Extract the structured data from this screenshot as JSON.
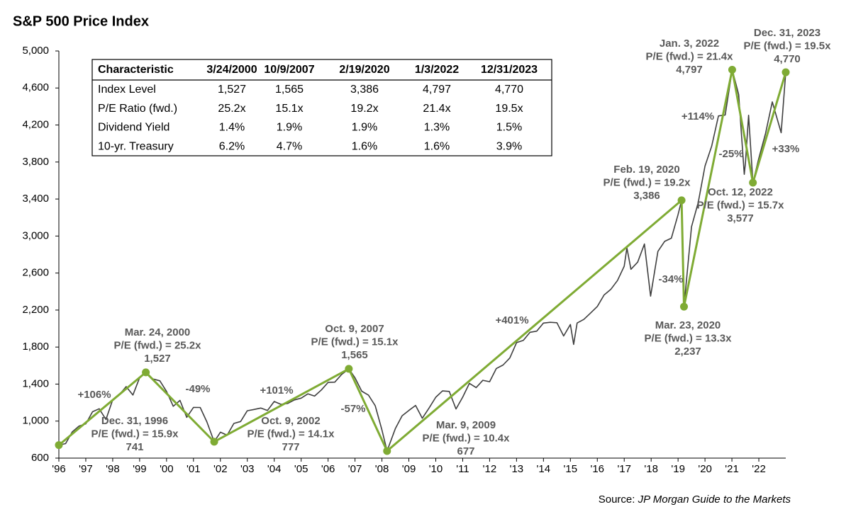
{
  "chart_data": {
    "type": "line",
    "title": "S&P 500 Price Index",
    "xlim": [
      1997,
      2024
    ],
    "xticks": [
      {
        "value": 1997,
        "label": "'96"
      },
      {
        "value": 1998,
        "label": "'97"
      },
      {
        "value": 1999,
        "label": "'98"
      },
      {
        "value": 2000,
        "label": "'99"
      },
      {
        "value": 2001,
        "label": "'00"
      },
      {
        "value": 2002,
        "label": "'01"
      },
      {
        "value": 2003,
        "label": "'02"
      },
      {
        "value": 2004,
        "label": "'03"
      },
      {
        "value": 2005,
        "label": "'04"
      },
      {
        "value": 2006,
        "label": "'05"
      },
      {
        "value": 2007,
        "label": "'06"
      },
      {
        "value": 2008,
        "label": "'07"
      },
      {
        "value": 2009,
        "label": "'08"
      },
      {
        "value": 2010,
        "label": "'09"
      },
      {
        "value": 2011,
        "label": "'10"
      },
      {
        "value": 2012,
        "label": "'11"
      },
      {
        "value": 2013,
        "label": "'12"
      },
      {
        "value": 2014,
        "label": "'13"
      },
      {
        "value": 2015,
        "label": "'14"
      },
      {
        "value": 2016,
        "label": "'15"
      },
      {
        "value": 2017,
        "label": "'16"
      },
      {
        "value": 2018,
        "label": "'17"
      },
      {
        "value": 2019,
        "label": "'18"
      },
      {
        "value": 2020,
        "label": "'19"
      },
      {
        "value": 2021,
        "label": "'20"
      },
      {
        "value": 2022,
        "label": "'21"
      },
      {
        "value": 2023,
        "label": "'22"
      }
    ],
    "ylim": [
      600,
      5000
    ],
    "yticks": [
      600,
      {
        "value": 1000,
        "label": "1,000"
      },
      {
        "value": 1400,
        "label": "1,400"
      },
      {
        "value": 1800,
        "label": "1,800"
      },
      {
        "value": 2200,
        "label": "2,200"
      },
      {
        "value": 2600,
        "label": "2,600"
      },
      {
        "value": 3000,
        "label": "3,000"
      },
      {
        "value": 3400,
        "label": "3,400"
      },
      {
        "value": 3800,
        "label": "3,800"
      },
      {
        "value": 4200,
        "label": "4,200"
      },
      {
        "value": 4600,
        "label": "4,600"
      },
      {
        "value": 5000,
        "label": "5,000"
      }
    ],
    "series": [
      {
        "color": "#3f3f3f",
        "x": [
          1997.0,
          1997.25,
          1997.5,
          1997.75,
          1998.0,
          1998.25,
          1998.5,
          1998.75,
          1999.0,
          1999.25,
          1999.5,
          1999.75,
          2000.0,
          2000.23,
          2000.5,
          2000.75,
          2001.0,
          2001.25,
          2001.5,
          2001.75,
          2002.0,
          2002.25,
          2002.5,
          2002.77,
          2003.0,
          2003.25,
          2003.5,
          2003.75,
          2004.0,
          2004.25,
          2004.5,
          2004.75,
          2005.0,
          2005.25,
          2005.5,
          2005.75,
          2006.0,
          2006.25,
          2006.5,
          2006.75,
          2007.0,
          2007.25,
          2007.5,
          2007.77,
          2008.0,
          2008.25,
          2008.5,
          2008.75,
          2009.0,
          2009.19,
          2009.5,
          2009.75,
          2010.0,
          2010.25,
          2010.5,
          2010.75,
          2011.0,
          2011.25,
          2011.5,
          2011.75,
          2012.0,
          2012.25,
          2012.5,
          2012.75,
          2013.0,
          2013.25,
          2013.5,
          2013.75,
          2014.0,
          2014.25,
          2014.5,
          2014.75,
          2015.0,
          2015.25,
          2015.5,
          2015.75,
          2016.0,
          2016.12,
          2016.25,
          2016.5,
          2016.75,
          2017.0,
          2017.25,
          2017.5,
          2017.75,
          2018.0,
          2018.1,
          2018.25,
          2018.5,
          2018.75,
          2018.98,
          2019.25,
          2019.5,
          2019.75,
          2020.0,
          2020.13,
          2020.22,
          2020.5,
          2020.75,
          2021.0,
          2021.25,
          2021.5,
          2021.75,
          2022.01,
          2022.25,
          2022.46,
          2022.5,
          2022.62,
          2022.78,
          2023.0,
          2023.25,
          2023.5,
          2023.83,
          2024.0
        ],
        "values": [
          741,
          757,
          885,
          947,
          970,
          1101,
          1133,
          1017,
          1229,
          1286,
          1373,
          1282,
          1469,
          1527,
          1455,
          1436,
          1320,
          1160,
          1224,
          1041,
          1148,
          1147,
          990,
          777,
          880,
          848,
          975,
          996,
          1112,
          1126,
          1141,
          1115,
          1212,
          1181,
          1191,
          1229,
          1248,
          1295,
          1270,
          1336,
          1418,
          1421,
          1503,
          1565,
          1468,
          1323,
          1280,
          1166,
          903,
          677,
          919,
          1057,
          1115,
          1169,
          1031,
          1141,
          1258,
          1326,
          1321,
          1131,
          1258,
          1408,
          1362,
          1441,
          1426,
          1569,
          1606,
          1682,
          1848,
          1872,
          1960,
          1972,
          2059,
          2068,
          2063,
          1920,
          2044,
          1829,
          2060,
          2099,
          2168,
          2239,
          2363,
          2423,
          2519,
          2674,
          2872,
          2641,
          2718,
          2914,
          2351,
          2834,
          2942,
          2977,
          3231,
          3386,
          2237,
          3100,
          3363,
          3756,
          3973,
          4298,
          4308,
          4797,
          4530,
          3667,
          3785,
          4305,
          3577,
          3840,
          4109,
          4450,
          4117,
          4770
        ]
      }
    ],
    "cycle": {
      "color": "#7fab34",
      "x": [
        1997.0,
        2000.23,
        2002.77,
        2007.77,
        2009.19,
        2020.13,
        2020.22,
        2022.01,
        2022.78,
        2024.0
      ],
      "values": [
        741,
        1527,
        777,
        1565,
        677,
        3386,
        2237,
        4797,
        3577,
        4770
      ],
      "value_labels": [
        "741",
        "1,527",
        "777",
        "1,565",
        "677",
        "3,386",
        "2,237",
        "4,797",
        "3,577",
        "4,770"
      ],
      "dates": [
        "Dec. 31, 1996",
        "Mar. 24, 2000",
        "Oct. 9, 2002",
        "Oct. 9, 2007",
        "Mar. 9, 2009",
        "Feb. 19, 2020",
        "Mar. 23, 2020",
        "Jan. 3, 2022",
        "Oct. 12, 2022",
        "Dec. 31, 2023"
      ],
      "pe_labels": [
        "P/E (fwd.) = 15.9x",
        "P/E (fwd.) = 25.2x",
        "P/E (fwd.) = 14.1x",
        "P/E (fwd.) = 15.1x",
        "P/E (fwd.) = 10.4x",
        "P/E (fwd.) = 19.2x",
        "P/E (fwd.) = 13.3x",
        "P/E (fwd.) = 21.4x",
        "P/E (fwd.) = 15.7x",
        "P/E (fwd.) = 19.5x"
      ],
      "moves": [
        "+106%",
        "-49%",
        "+101%",
        "-57%",
        "+401%",
        "-34%",
        "+114%",
        "-25%",
        "+33%"
      ]
    },
    "table": {
      "header": [
        "Characteristic",
        "3/24/2000",
        "10/9/2007",
        "2/19/2020",
        "1/3/2022",
        "12/31/2023"
      ],
      "rows": [
        [
          "Index Level",
          "1,527",
          "1,565",
          "3,386",
          "4,797",
          "4,770"
        ],
        [
          "P/E Ratio (fwd.)",
          "25.2x",
          "15.1x",
          "19.2x",
          "21.4x",
          "19.5x"
        ],
        [
          "Dividend Yield",
          "1.4%",
          "1.9%",
          "1.9%",
          "1.3%",
          "1.5%"
        ],
        [
          "10-yr. Treasury",
          "6.2%",
          "4.7%",
          "1.6%",
          "1.6%",
          "3.9%"
        ]
      ]
    },
    "source_label": "Source:",
    "source": "JP Morgan Guide to the Markets"
  }
}
